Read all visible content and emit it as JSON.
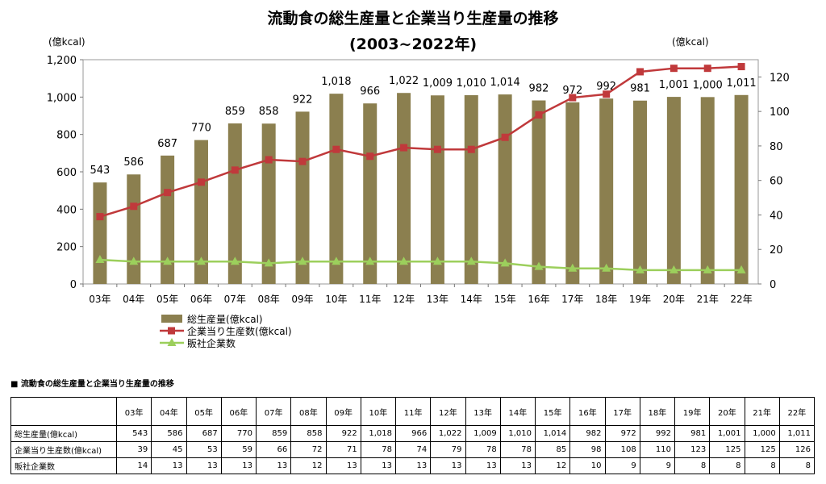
{
  "chart_data": {
    "type": "bar",
    "title": "流動食の総生産量と企業当り生産量の推移",
    "subtitle": "(2003~2022年)",
    "ylabel_left": "(億kcal)",
    "ylabel_right": "(億kcal)",
    "ylim_left": [
      0,
      1200
    ],
    "yticks_left": [
      "0",
      "200",
      "400",
      "600",
      "800",
      "1,000",
      "1,200"
    ],
    "ylim_right": [
      0,
      130
    ],
    "yticks_right": [
      "0",
      "20",
      "40",
      "60",
      "80",
      "100",
      "120"
    ],
    "legend_position": "bottom-left",
    "categories": [
      "03年",
      "04年",
      "05年",
      "06年",
      "07年",
      "08年",
      "09年",
      "10年",
      "11年",
      "12年",
      "13年",
      "14年",
      "15年",
      "16年",
      "17年",
      "18年",
      "19年",
      "20年",
      "21年",
      "22年"
    ],
    "series": [
      {
        "name": "総生産量(億kcal)",
        "kind": "bar",
        "axis": "left",
        "color": "#8b7f4f",
        "values": [
          543,
          586,
          687,
          770,
          859,
          858,
          922,
          1018,
          966,
          1022,
          1009,
          1010,
          1014,
          982,
          972,
          992,
          981,
          1001,
          1000,
          1011
        ],
        "labels": [
          "543",
          "586",
          "687",
          "770",
          "859",
          "858",
          "922",
          "1,018",
          "966",
          "1,022",
          "1,009",
          "1,010",
          "1,014",
          "982",
          "972",
          "992",
          "981",
          "1,001",
          "1,000",
          "1,011"
        ]
      },
      {
        "name": "企業当り生産数(億kcal)",
        "kind": "line",
        "axis": "right",
        "color": "#c0393b",
        "marker": "square",
        "values": [
          39,
          45,
          53,
          59,
          66,
          72,
          71,
          78,
          74,
          79,
          78,
          78,
          85,
          98,
          108,
          110,
          123,
          125,
          125,
          126
        ]
      },
      {
        "name": "販社企業数",
        "kind": "line",
        "axis": "right",
        "color": "#9ccf5c",
        "marker": "triangle",
        "values": [
          14,
          13,
          13,
          13,
          13,
          12,
          13,
          13,
          13,
          13,
          13,
          13,
          12,
          10,
          9,
          9,
          8,
          8,
          8,
          8
        ]
      }
    ]
  },
  "table": {
    "heading": "■ 流動食の総生産量と企業当り生産量の推移",
    "columns": [
      "03年",
      "04年",
      "05年",
      "06年",
      "07年",
      "08年",
      "09年",
      "10年",
      "11年",
      "12年",
      "13年",
      "14年",
      "15年",
      "16年",
      "17年",
      "18年",
      "19年",
      "20年",
      "21年",
      "22年"
    ],
    "rows": [
      {
        "label": "総生産量(億kcal)",
        "cells": [
          "543",
          "586",
          "687",
          "770",
          "859",
          "858",
          "922",
          "1,018",
          "966",
          "1,022",
          "1,009",
          "1,010",
          "1,014",
          "982",
          "972",
          "992",
          "981",
          "1,001",
          "1,000",
          "1,011"
        ]
      },
      {
        "label": "企業当り生産数(億kcal)",
        "cells": [
          "39",
          "45",
          "53",
          "59",
          "66",
          "72",
          "71",
          "78",
          "74",
          "79",
          "78",
          "78",
          "85",
          "98",
          "108",
          "110",
          "123",
          "125",
          "125",
          "126"
        ]
      },
      {
        "label": "販社企業数",
        "cells": [
          "14",
          "13",
          "13",
          "13",
          "13",
          "12",
          "13",
          "13",
          "13",
          "13",
          "13",
          "13",
          "12",
          "10",
          "9",
          "9",
          "8",
          "8",
          "8",
          "8"
        ]
      }
    ]
  }
}
